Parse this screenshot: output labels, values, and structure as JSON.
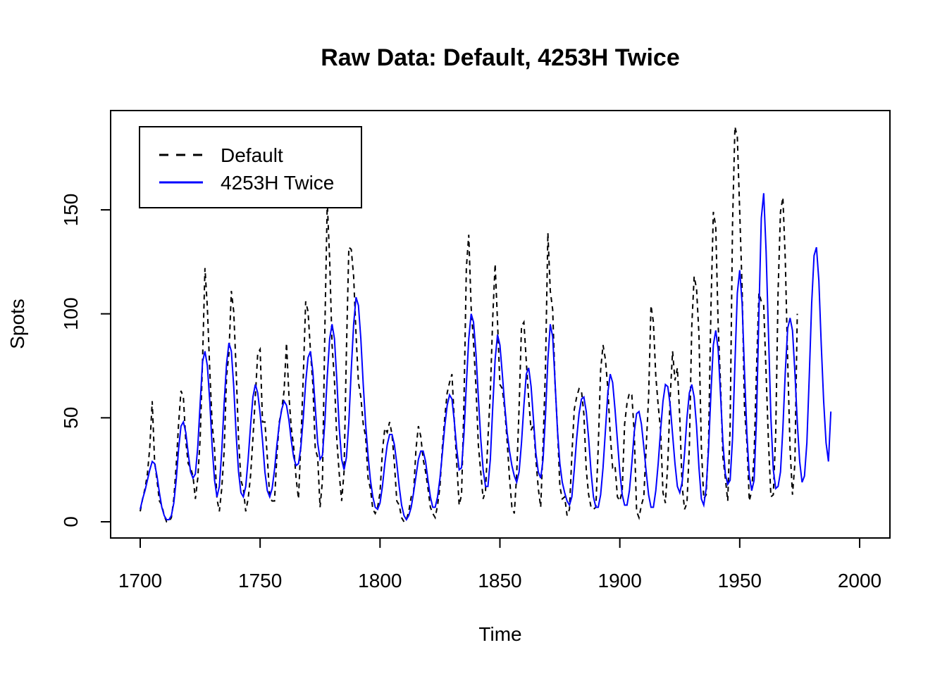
{
  "chart_data": {
    "type": "line",
    "title": "Raw Data: Default, 4253H Twice",
    "xlabel": "Time",
    "ylabel": "Spots",
    "xlim": [
      1700,
      2000
    ],
    "ylim": [
      0,
      190
    ],
    "x_ticks": [
      "1700",
      "1750",
      "1800",
      "1850",
      "1900",
      "1950",
      "2000"
    ],
    "y_ticks": [
      "0",
      "50",
      "100",
      "150"
    ],
    "x_tick_values": [
      1700,
      1750,
      1800,
      1850,
      1900,
      1950,
      2000
    ],
    "y_tick_values": [
      0,
      50,
      100,
      150
    ],
    "grid": false,
    "legend_position": "top-left",
    "series": [
      {
        "name": "Default",
        "color": "#000000",
        "line_style": "dashed",
        "x_start": 1700,
        "x_step": 1,
        "values": [
          5,
          11,
          16,
          23,
          36,
          58,
          29,
          20,
          10,
          8,
          3,
          0,
          0,
          2,
          11,
          27,
          47,
          63,
          60,
          39,
          28,
          26,
          22,
          11,
          21,
          40,
          78,
          122,
          103,
          73,
          47,
          35,
          11,
          5,
          16,
          34,
          70,
          81,
          111,
          101,
          73,
          40,
          20,
          16,
          5,
          11,
          22,
          40,
          60,
          81,
          83,
          48,
          48,
          31,
          12,
          10,
          10,
          32,
          48,
          54,
          63,
          86,
          61,
          45,
          36,
          21,
          11,
          38,
          70,
          106,
          101,
          82,
          66,
          35,
          31,
          7,
          20,
          93,
          154,
          126,
          85,
          68,
          39,
          23,
          10,
          24,
          83,
          132,
          131,
          118,
          90,
          67,
          60,
          47,
          41,
          21,
          16,
          6,
          4,
          7,
          14,
          34,
          45,
          43,
          48,
          42,
          28,
          10,
          8,
          2,
          0,
          1,
          5,
          12,
          14,
          35,
          46,
          41,
          30,
          24,
          16,
          7,
          4,
          2,
          8,
          17,
          36,
          50,
          62,
          67,
          71,
          48,
          28,
          8,
          13,
          57,
          122,
          138,
          103,
          86,
          65,
          37,
          24,
          11,
          15,
          40,
          62,
          98,
          124,
          96,
          66,
          64,
          54,
          39,
          21,
          7,
          4,
          23,
          55,
          94,
          96,
          77,
          59,
          44,
          47,
          30,
          16,
          7,
          37,
          74,
          139,
          111,
          102,
          66,
          45,
          17,
          11,
          12,
          3,
          6,
          32,
          54,
          60,
          64,
          63,
          52,
          25,
          13,
          7,
          6,
          7,
          36,
          73,
          85,
          78,
          64,
          42,
          26,
          27,
          12,
          10,
          15,
          47,
          57,
          62,
          61,
          43,
          5,
          2,
          8,
          12,
          36,
          60,
          104,
          96,
          70,
          56,
          44,
          14,
          9,
          28,
          60,
          82,
          68,
          74,
          50,
          17,
          6,
          9,
          36,
          94,
          118,
          112,
          90,
          36,
          11,
          13,
          38,
          103,
          149,
          142,
          95,
          66,
          31,
          21,
          10,
          46,
          143,
          190,
          185,
          149,
          112,
          54,
          38,
          10,
          15,
          32,
          73,
          110,
          106,
          104,
          71,
          38,
          12,
          13,
          42,
          111,
          149,
          156,
          126,
          77,
          35,
          13,
          28,
          100
        ]
      },
      {
        "name": "4253H Twice",
        "color": "#0000ff",
        "line_style": "solid",
        "x_start": 1700,
        "x_step": 1,
        "values": [
          6,
          11,
          15,
          20,
          25,
          29,
          28,
          22,
          14,
          7,
          3,
          1,
          1,
          3,
          9,
          20,
          35,
          46,
          48,
          43,
          33,
          24,
          21,
          23,
          36,
          57,
          77,
          82,
          75,
          58,
          36,
          20,
          12,
          17,
          34,
          57,
          76,
          86,
          82,
          65,
          42,
          24,
          14,
          12,
          17,
          30,
          46,
          60,
          66,
          62,
          52,
          39,
          24,
          15,
          12,
          16,
          25,
          37,
          47,
          54,
          58,
          56,
          49,
          39,
          31,
          27,
          28,
          36,
          50,
          67,
          79,
          82,
          72,
          55,
          38,
          30,
          32,
          48,
          70,
          88,
          95,
          88,
          68,
          45,
          30,
          25,
          31,
          48,
          73,
          95,
          108,
          104,
          88,
          66,
          47,
          32,
          20,
          12,
          7,
          6,
          9,
          17,
          28,
          37,
          42,
          42,
          37,
          28,
          17,
          8,
          3,
          1,
          3,
          7,
          14,
          22,
          30,
          34,
          34,
          29,
          20,
          12,
          7,
          7,
          12,
          21,
          33,
          46,
          56,
          61,
          59,
          48,
          35,
          25,
          26,
          42,
          66,
          88,
          100,
          96,
          81,
          60,
          40,
          25,
          17,
          17,
          30,
          55,
          78,
          90,
          85,
          71,
          56,
          43,
          34,
          27,
          22,
          19,
          24,
          38,
          56,
          71,
          74,
          65,
          49,
          33,
          24,
          21,
          30,
          51,
          78,
          95,
          89,
          67,
          44,
          28,
          19,
          14,
          10,
          8,
          12,
          25,
          40,
          52,
          59,
          60,
          53,
          40,
          24,
          12,
          7,
          7,
          13,
          26,
          44,
          62,
          71,
          67,
          54,
          39,
          24,
          13,
          8,
          8,
          15,
          28,
          43,
          52,
          53,
          47,
          36,
          24,
          13,
          7,
          7,
          15,
          28,
          44,
          58,
          66,
          65,
          56,
          42,
          28,
          17,
          14,
          19,
          33,
          50,
          62,
          66,
          60,
          46,
          26,
          11,
          8,
          16,
          35,
          62,
          85,
          92,
          83,
          61,
          38,
          23,
          18,
          20,
          40,
          76,
          110,
          121,
          105,
          72,
          42,
          22,
          15,
          20,
          50,
          100,
          146,
          158,
          130,
          90,
          50,
          25,
          16,
          17,
          24,
          45,
          72,
          93,
          98,
          92,
          72,
          48,
          29,
          19,
          22,
          38,
          70,
          105,
          128,
          132,
          116,
          85,
          58,
          38,
          29,
          53
        ]
      }
    ]
  }
}
